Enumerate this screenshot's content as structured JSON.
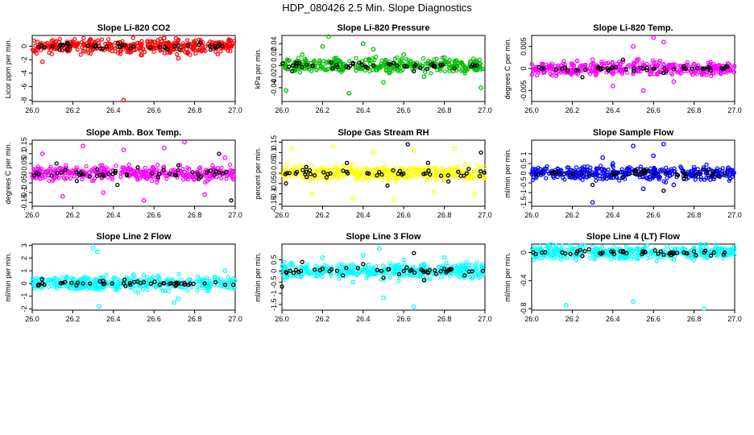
{
  "figure_title": "HDP_080426  2.5 Min. Slope Diagnostics",
  "chart_data": [
    {
      "type": "scatter",
      "title": "Slope Li-820 CO2",
      "ylabel": "Licor ppm per min.",
      "xlim": [
        26.0,
        27.0
      ],
      "xticks": [
        "26.0",
        "26.2",
        "26.4",
        "26.6",
        "26.8",
        "27.0"
      ],
      "ylim": [
        -8.2,
        1.6
      ],
      "yticks": [
        0,
        -2,
        -4,
        -6,
        -8
      ],
      "color": "#ff0000",
      "series": [
        {
          "name": "all",
          "x": [
            26.05,
            26.1,
            26.15,
            26.3,
            26.45,
            26.5,
            26.65,
            26.72,
            26.8,
            26.9,
            26.95
          ],
          "y": [
            -2.3,
            0.4,
            -0.6,
            -0.3,
            -8.0,
            0.3,
            1.2,
            -1.8,
            0.2,
            0.4,
            0.1
          ]
        },
        {
          "name": "selected",
          "x": [
            26.1,
            26.3,
            26.5,
            26.7,
            26.9
          ],
          "y": [
            0.0,
            0.0,
            0.0,
            0.0,
            0.0
          ]
        }
      ]
    },
    {
      "type": "scatter",
      "title": "Slope Li-820 Pressure",
      "ylabel": "kPa per min.",
      "xlim": [
        26.0,
        27.0
      ],
      "xticks": [
        "26.0",
        "26.2",
        "26.4",
        "26.6",
        "26.8",
        "27.0"
      ],
      "ylim": [
        -0.065,
        0.055
      ],
      "yticks": [
        0.04,
        0.02,
        0.0,
        -0.02,
        -0.04
      ],
      "color": "#00c000",
      "series": [
        {
          "name": "all",
          "x": [
            26.02,
            26.1,
            26.2,
            26.23,
            26.28,
            26.33,
            26.4,
            26.45,
            26.5,
            26.6,
            26.7,
            26.8,
            26.9,
            26.98
          ],
          "y": [
            -0.045,
            0.02,
            0.035,
            0.053,
            0.01,
            -0.05,
            0.04,
            0.03,
            -0.03,
            0.02,
            -0.02,
            0.015,
            -0.01,
            -0.04
          ]
        },
        {
          "name": "selected",
          "x": [
            26.05,
            26.15,
            26.25,
            26.35,
            26.45,
            26.55,
            26.65,
            26.75,
            26.85,
            26.95
          ],
          "y": [
            -0.01,
            0.0,
            -0.005,
            0.005,
            0.0,
            0.005,
            -0.01,
            0.0,
            -0.005,
            0.0
          ]
        }
      ]
    },
    {
      "type": "scatter",
      "title": "Slope Li-820 Temp.",
      "ylabel": "degrees C per min.",
      "xlim": [
        26.0,
        27.0
      ],
      "xticks": [
        "26.0",
        "26.2",
        "26.4",
        "26.6",
        "26.8",
        "27.0"
      ],
      "ylim": [
        -0.0075,
        0.0075
      ],
      "yticks": [
        0.005,
        0.0,
        -0.005
      ],
      "color": "#ff00ff",
      "series": [
        {
          "name": "all",
          "x": [
            26.1,
            26.2,
            26.3,
            26.4,
            26.5,
            26.55,
            26.6,
            26.65,
            26.7,
            26.8,
            26.9
          ],
          "y": [
            0.001,
            -0.001,
            0.002,
            -0.004,
            0.005,
            -0.005,
            0.007,
            0.006,
            -0.003,
            0.001,
            0.0
          ]
        },
        {
          "name": "selected",
          "x": [
            26.05,
            26.15,
            26.25,
            26.35,
            26.45,
            26.55,
            26.65,
            26.75,
            26.85,
            26.95
          ],
          "y": [
            0.0,
            0.0,
            -0.002,
            0.0,
            0.002,
            0.0,
            -0.001,
            0.0,
            0.0,
            0.0
          ]
        }
      ]
    },
    {
      "type": "scatter",
      "title": "Slope Amb. Box Temp.",
      "ylabel": "degrees C per min.",
      "xlim": [
        26.0,
        27.0
      ],
      "xticks": [
        "26.0",
        "26.2",
        "26.4",
        "26.6",
        "26.8",
        "27.0"
      ],
      "ylim": [
        -0.17,
        0.17
      ],
      "yticks": [
        0.15,
        0.1,
        0.05,
        0.0,
        -0.05,
        -0.1,
        -0.15
      ],
      "color": "#ff00ff",
      "series": [
        {
          "name": "all",
          "x": [
            26.05,
            26.15,
            26.25,
            26.35,
            26.45,
            26.55,
            26.65,
            26.75,
            26.85,
            26.95
          ],
          "y": [
            0.1,
            -0.12,
            0.14,
            -0.1,
            0.12,
            -0.14,
            0.13,
            0.16,
            -0.11,
            0.08
          ]
        },
        {
          "name": "selected",
          "x": [
            26.02,
            26.12,
            26.22,
            26.32,
            26.42,
            26.52,
            26.62,
            26.72,
            26.82,
            26.92,
            26.98
          ],
          "y": [
            0.0,
            0.05,
            -0.04,
            0.02,
            -0.06,
            0.03,
            -0.02,
            0.04,
            -0.03,
            0.1,
            -0.14
          ]
        }
      ]
    },
    {
      "type": "scatter",
      "title": "Slope Gas Stream RH",
      "ylabel": "percent per min.",
      "xlim": [
        26.0,
        27.0
      ],
      "xticks": [
        "26.0",
        "26.2",
        "26.4",
        "26.6",
        "26.8",
        "27.0"
      ],
      "ylim": [
        -0.16,
        0.16
      ],
      "yticks": [
        0.15,
        0.1,
        0.05,
        0.0,
        -0.05,
        -0.1,
        -0.15
      ],
      "color": "#ffff00",
      "series": [
        {
          "name": "all",
          "x": [
            26.05,
            26.15,
            26.25,
            26.35,
            26.45,
            26.55,
            26.65,
            26.75,
            26.85,
            26.95
          ],
          "y": [
            0.12,
            -0.1,
            0.13,
            -0.12,
            0.1,
            -0.13,
            0.11,
            -0.09,
            0.12,
            -0.1
          ]
        },
        {
          "name": "selected",
          "x": [
            26.02,
            26.12,
            26.22,
            26.32,
            26.42,
            26.52,
            26.62,
            26.72,
            26.82,
            26.92,
            26.98
          ],
          "y": [
            -0.05,
            0.03,
            -0.02,
            0.05,
            0.0,
            -0.06,
            0.14,
            0.05,
            -0.04,
            0.02,
            0.1
          ]
        }
      ]
    },
    {
      "type": "scatter",
      "title": "Slope Sample Flow",
      "ylabel": "ml/min per min.",
      "xlim": [
        26.0,
        27.0
      ],
      "xticks": [
        "26.0",
        "26.2",
        "26.4",
        "26.6",
        "26.8",
        "27.0"
      ],
      "ylim": [
        -1.7,
        1.7
      ],
      "yticks": [
        1.0,
        0.5,
        0.0,
        -0.5,
        -1.0,
        -1.5
      ],
      "color": "#0000ff",
      "series": [
        {
          "name": "all",
          "x": [
            26.05,
            26.2,
            26.3,
            26.35,
            26.4,
            26.5,
            26.55,
            26.6,
            26.65,
            26.7,
            26.8,
            26.9
          ],
          "y": [
            0.1,
            -0.2,
            -1.5,
            0.8,
            0.5,
            1.4,
            -0.8,
            0.9,
            1.5,
            -0.6,
            0.3,
            -0.2
          ]
        },
        {
          "name": "selected",
          "x": [
            26.1,
            26.3,
            26.45,
            26.55,
            26.65,
            26.75,
            26.85,
            26.95
          ],
          "y": [
            0.0,
            -0.6,
            -0.2,
            0.0,
            -0.9,
            -0.3,
            0.2,
            0.0
          ]
        }
      ]
    },
    {
      "type": "scatter",
      "title": "Slope Line 2 Flow",
      "ylabel": "ml/min per min.",
      "xlim": [
        26.0,
        27.0
      ],
      "xticks": [
        "26.0",
        "26.2",
        "26.4",
        "26.6",
        "26.8",
        "27.0"
      ],
      "ylim": [
        -2.1,
        3.1
      ],
      "yticks": [
        3,
        2,
        1,
        0,
        -1,
        -2
      ],
      "color": "#00ffff",
      "series": [
        {
          "name": "all",
          "x": [
            26.05,
            26.15,
            26.3,
            26.32,
            26.33,
            26.5,
            26.7,
            26.72,
            26.9,
            26.95
          ],
          "y": [
            0.3,
            -0.2,
            2.8,
            2.5,
            -1.8,
            0.6,
            -1.5,
            -1.2,
            0.5,
            1.0
          ]
        },
        {
          "name": "selected",
          "x": [
            26.05,
            26.15,
            26.25,
            26.35,
            26.45,
            26.55,
            26.65,
            26.75,
            26.85,
            26.95,
            26.99
          ],
          "y": [
            0.0,
            0.05,
            0.0,
            0.2,
            0.0,
            0.1,
            0.0,
            0.05,
            0.0,
            -0.1,
            -0.1
          ]
        }
      ]
    },
    {
      "type": "scatter",
      "title": "Slope Line 3 Flow",
      "ylabel": "ml/min per min.",
      "xlim": [
        26.0,
        27.0
      ],
      "xticks": [
        "26.0",
        "26.2",
        "26.4",
        "26.6",
        "26.8",
        "27.0"
      ],
      "ylim": [
        -1.75,
        1.2
      ],
      "yticks": [
        0.5,
        0.0,
        -0.5,
        -1.0,
        -1.5
      ],
      "color": "#00ffff",
      "series": [
        {
          "name": "all",
          "x": [
            26.05,
            26.2,
            26.35,
            26.4,
            26.48,
            26.5,
            26.6,
            26.65,
            26.7,
            26.8,
            26.9
          ],
          "y": [
            0.3,
            0.6,
            -0.5,
            0.7,
            1.0,
            -1.2,
            0.5,
            -1.6,
            0.3,
            0.6,
            -0.3
          ]
        },
        {
          "name": "selected",
          "x": [
            26.0,
            26.1,
            26.2,
            26.3,
            26.4,
            26.5,
            26.6,
            26.65,
            26.7,
            26.8,
            26.9,
            26.99
          ],
          "y": [
            -0.7,
            0.4,
            0.1,
            -0.2,
            0.3,
            -0.3,
            0.0,
            0.8,
            -0.4,
            0.1,
            -0.2,
            0.0
          ]
        }
      ]
    },
    {
      "type": "scatter",
      "title": "Slope Line 4 (LT) Flow",
      "ylabel": "ml/min per min.",
      "xlim": [
        26.0,
        27.0
      ],
      "xticks": [
        "26.0",
        "26.2",
        "26.4",
        "26.6",
        "26.8",
        "27.0"
      ],
      "ylim": [
        -0.82,
        0.12
      ],
      "yticks": [
        0.0,
        -0.4,
        -0.8
      ],
      "color": "#00ffff",
      "series": [
        {
          "name": "all",
          "x": [
            26.08,
            26.17,
            26.3,
            26.5,
            26.55,
            26.7,
            26.85,
            26.95
          ],
          "y": [
            0.1,
            -0.75,
            0.08,
            -0.7,
            0.05,
            -0.1,
            -0.8,
            0.06
          ]
        },
        {
          "name": "selected",
          "x": [
            26.05,
            26.15,
            26.25,
            26.35,
            26.45,
            26.55,
            26.65,
            26.75,
            26.85,
            26.95
          ],
          "y": [
            0.0,
            0.0,
            -0.05,
            0.0,
            0.02,
            0.0,
            -0.03,
            0.0,
            0.0,
            0.0
          ]
        }
      ]
    }
  ]
}
